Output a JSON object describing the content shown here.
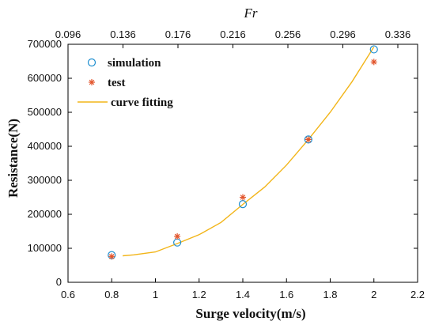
{
  "chart_data": {
    "type": "scatter",
    "xlabel": "Surge velocity(m/s)",
    "ylabel": "Resistance(N)",
    "top_axis_label": "Fr",
    "xlim": [
      0.6,
      2.2
    ],
    "ylim": [
      0,
      700000
    ],
    "x_ticks": [
      "0.6",
      "0.8",
      "1",
      "1.2",
      "1.4",
      "1.6",
      "1.8",
      "2",
      "2.2"
    ],
    "y_ticks": [
      "0",
      "100000",
      "200000",
      "300000",
      "400000",
      "500000",
      "600000",
      "700000"
    ],
    "top_ticks": [
      "0.096",
      "0.136",
      "0.176",
      "0.216",
      "0.256",
      "0.296",
      "0.336"
    ],
    "legend_position": "top-left",
    "series": [
      {
        "name": "simulation",
        "marker": "circle",
        "color": "#1f8fd0",
        "points": [
          {
            "x": 0.8,
            "y": 80000
          },
          {
            "x": 1.1,
            "y": 117000
          },
          {
            "x": 1.4,
            "y": 230000
          },
          {
            "x": 1.7,
            "y": 420000
          },
          {
            "x": 2.0,
            "y": 685000
          }
        ]
      },
      {
        "name": "test",
        "marker": "asterisk",
        "color": "#e2542b",
        "points": [
          {
            "x": 0.8,
            "y": 76000
          },
          {
            "x": 1.1,
            "y": 135000
          },
          {
            "x": 1.4,
            "y": 250000
          },
          {
            "x": 1.7,
            "y": 420000
          },
          {
            "x": 2.0,
            "y": 648000
          }
        ]
      },
      {
        "name": "curve fitting",
        "marker": "line",
        "color": "#f2b519",
        "points": [
          {
            "x": 0.85,
            "y": 78000
          },
          {
            "x": 0.9,
            "y": 80600
          },
          {
            "x": 1.0,
            "y": 89200
          },
          {
            "x": 1.1,
            "y": 114000
          },
          {
            "x": 1.2,
            "y": 140000
          },
          {
            "x": 1.3,
            "y": 176000
          },
          {
            "x": 1.4,
            "y": 229000
          },
          {
            "x": 1.5,
            "y": 280000
          },
          {
            "x": 1.6,
            "y": 345000
          },
          {
            "x": 1.7,
            "y": 420000
          },
          {
            "x": 1.8,
            "y": 500000
          },
          {
            "x": 1.9,
            "y": 590000
          },
          {
            "x": 1.95,
            "y": 641000
          },
          {
            "x": 2.0,
            "y": 692000
          }
        ]
      }
    ]
  }
}
